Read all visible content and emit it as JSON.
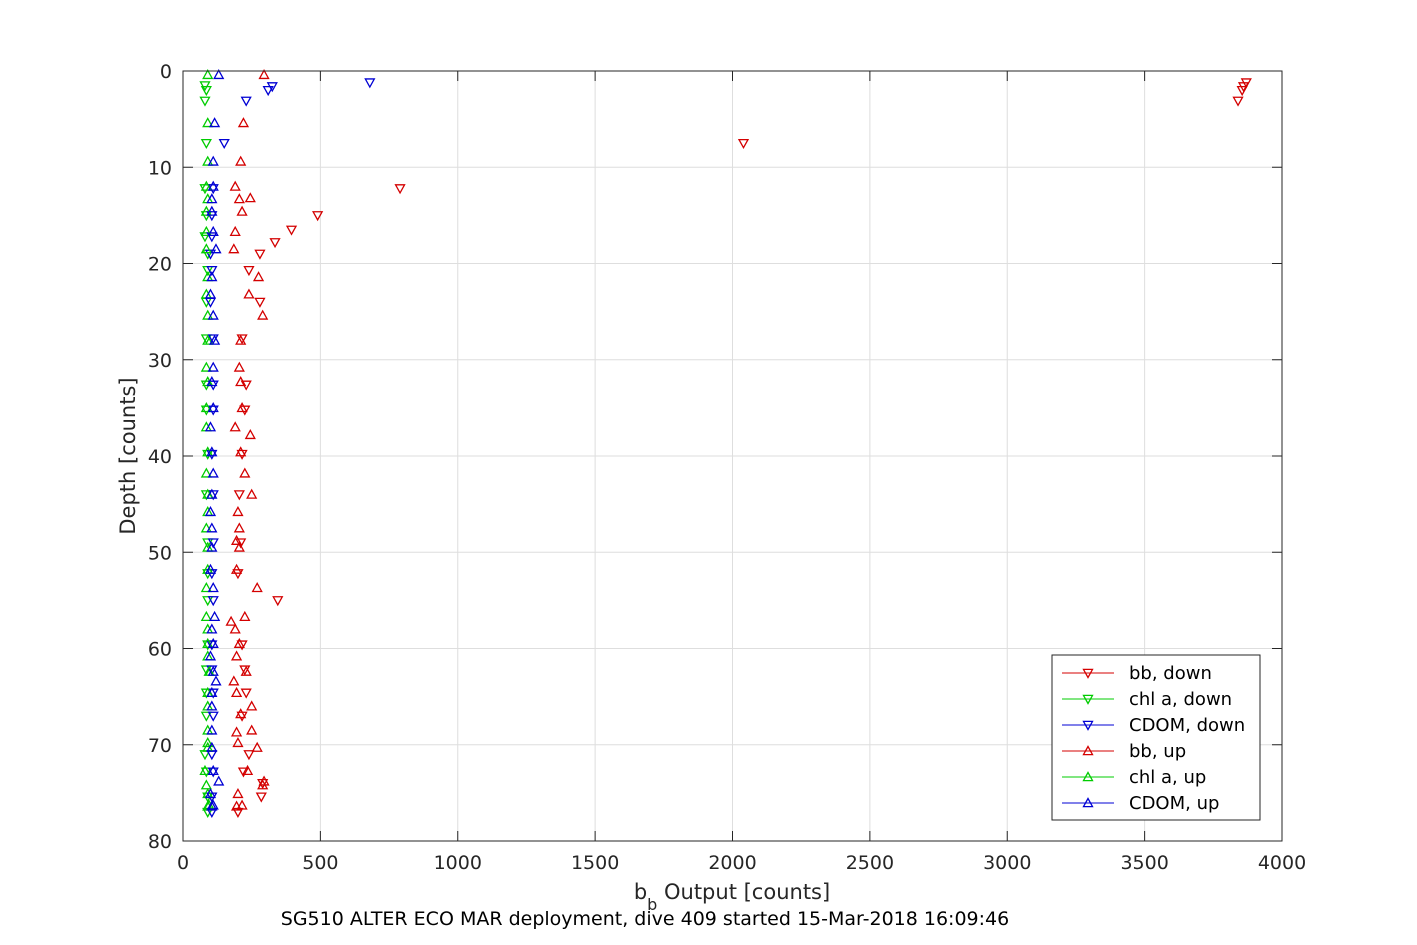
{
  "chart_data": {
    "type": "scatter",
    "title": "",
    "caption": "SG510 ALTER ECO MAR deployment, dive 409 started 15-Mar-2018 16:09:46",
    "xlabel_main": "b",
    "xlabel_sub": "b",
    "xlabel_rest": " Output [counts]",
    "ylabel": "Depth [counts]",
    "xlim": [
      0,
      4000
    ],
    "ylim": [
      0,
      80
    ],
    "y_reversed": true,
    "grid": true,
    "legend_position": "bottom-right",
    "x_ticks": [
      0,
      500,
      1000,
      1500,
      2000,
      2500,
      3000,
      3500,
      4000
    ],
    "y_ticks": [
      0,
      10,
      20,
      30,
      40,
      50,
      60,
      70,
      80
    ],
    "series": [
      {
        "name": "bb, down",
        "color": "#d40000",
        "marker": "triangle-down",
        "points": [
          [
            3870,
            1.2
          ],
          [
            3860,
            1.6
          ],
          [
            3855,
            2.0
          ],
          [
            3840,
            3.1
          ],
          [
            2040,
            7.5
          ],
          [
            790,
            12.2
          ],
          [
            490,
            15.0
          ],
          [
            395,
            16.5
          ],
          [
            335,
            17.8
          ],
          [
            280,
            19.0
          ],
          [
            240,
            20.7
          ],
          [
            280,
            24.0
          ],
          [
            215,
            27.8
          ],
          [
            230,
            32.6
          ],
          [
            225,
            35.2
          ],
          [
            215,
            39.8
          ],
          [
            205,
            44.0
          ],
          [
            210,
            49.0
          ],
          [
            200,
            52.2
          ],
          [
            345,
            55.0
          ],
          [
            215,
            59.6
          ],
          [
            225,
            62.2
          ],
          [
            230,
            64.6
          ],
          [
            215,
            67.0
          ],
          [
            240,
            71.0
          ],
          [
            220,
            72.8
          ],
          [
            290,
            74.0
          ],
          [
            285,
            75.4
          ],
          [
            200,
            77.0
          ]
        ]
      },
      {
        "name": "chl a, down",
        "color": "#00cc00",
        "marker": "triangle-down",
        "points": [
          [
            80,
            1.5
          ],
          [
            85,
            2.0
          ],
          [
            80,
            3.1
          ],
          [
            85,
            7.5
          ],
          [
            80,
            12.2
          ],
          [
            85,
            15.0
          ],
          [
            80,
            17.2
          ],
          [
            90,
            19.0
          ],
          [
            90,
            20.7
          ],
          [
            85,
            24.0
          ],
          [
            85,
            27.8
          ],
          [
            85,
            32.6
          ],
          [
            85,
            35.2
          ],
          [
            90,
            39.8
          ],
          [
            85,
            44.0
          ],
          [
            90,
            49.0
          ],
          [
            90,
            52.2
          ],
          [
            90,
            55.0
          ],
          [
            90,
            59.6
          ],
          [
            85,
            62.2
          ],
          [
            85,
            64.6
          ],
          [
            85,
            67.0
          ],
          [
            80,
            71.0
          ],
          [
            85,
            72.8
          ],
          [
            90,
            75.4
          ],
          [
            90,
            77.0
          ]
        ]
      },
      {
        "name": "CDOM, down",
        "color": "#0000d4",
        "marker": "triangle-down",
        "points": [
          [
            680,
            1.2
          ],
          [
            325,
            1.6
          ],
          [
            310,
            2.0
          ],
          [
            230,
            3.1
          ],
          [
            150,
            7.5
          ],
          [
            110,
            12.2
          ],
          [
            105,
            15.0
          ],
          [
            105,
            17.2
          ],
          [
            100,
            19.0
          ],
          [
            105,
            20.7
          ],
          [
            100,
            24.0
          ],
          [
            110,
            27.8
          ],
          [
            110,
            32.6
          ],
          [
            110,
            35.2
          ],
          [
            105,
            39.8
          ],
          [
            110,
            44.0
          ],
          [
            110,
            49.0
          ],
          [
            105,
            52.2
          ],
          [
            110,
            55.0
          ],
          [
            105,
            59.6
          ],
          [
            105,
            62.2
          ],
          [
            110,
            64.6
          ],
          [
            110,
            67.0
          ],
          [
            105,
            71.0
          ],
          [
            110,
            72.8
          ],
          [
            105,
            75.4
          ],
          [
            105,
            77.0
          ]
        ]
      },
      {
        "name": "bb, up",
        "color": "#d40000",
        "marker": "triangle-up",
        "points": [
          [
            295,
            0.4
          ],
          [
            220,
            5.4
          ],
          [
            210,
            9.4
          ],
          [
            190,
            12.0
          ],
          [
            245,
            13.2
          ],
          [
            205,
            13.3
          ],
          [
            215,
            14.6
          ],
          [
            190,
            16.7
          ],
          [
            185,
            18.5
          ],
          [
            275,
            21.4
          ],
          [
            240,
            23.2
          ],
          [
            290,
            25.4
          ],
          [
            210,
            28.0
          ],
          [
            205,
            30.8
          ],
          [
            210,
            32.3
          ],
          [
            215,
            35.0
          ],
          [
            190,
            37.0
          ],
          [
            245,
            37.8
          ],
          [
            210,
            39.6
          ],
          [
            225,
            41.8
          ],
          [
            250,
            44.0
          ],
          [
            200,
            45.8
          ],
          [
            205,
            47.5
          ],
          [
            195,
            48.8
          ],
          [
            205,
            49.5
          ],
          [
            195,
            51.8
          ],
          [
            270,
            53.7
          ],
          [
            225,
            56.7
          ],
          [
            175,
            57.2
          ],
          [
            190,
            58.0
          ],
          [
            205,
            59.5
          ],
          [
            195,
            60.8
          ],
          [
            230,
            62.4
          ],
          [
            185,
            63.4
          ],
          [
            195,
            64.6
          ],
          [
            250,
            66.0
          ],
          [
            210,
            66.8
          ],
          [
            250,
            68.5
          ],
          [
            195,
            68.7
          ],
          [
            200,
            69.8
          ],
          [
            270,
            70.3
          ],
          [
            235,
            72.7
          ],
          [
            295,
            73.8
          ],
          [
            290,
            74.2
          ],
          [
            200,
            75.1
          ],
          [
            215,
            76.3
          ],
          [
            195,
            76.4
          ]
        ]
      },
      {
        "name": "chl a, up",
        "color": "#00cc00",
        "marker": "triangle-up",
        "points": [
          [
            90,
            0.4
          ],
          [
            90,
            5.4
          ],
          [
            90,
            9.4
          ],
          [
            85,
            12.0
          ],
          [
            90,
            13.3
          ],
          [
            85,
            14.6
          ],
          [
            85,
            16.7
          ],
          [
            85,
            18.5
          ],
          [
            90,
            21.4
          ],
          [
            85,
            23.2
          ],
          [
            90,
            25.4
          ],
          [
            90,
            28.0
          ],
          [
            85,
            30.8
          ],
          [
            90,
            32.3
          ],
          [
            85,
            35.0
          ],
          [
            85,
            37.0
          ],
          [
            90,
            39.6
          ],
          [
            85,
            41.8
          ],
          [
            90,
            44.0
          ],
          [
            90,
            45.8
          ],
          [
            85,
            47.5
          ],
          [
            90,
            49.5
          ],
          [
            90,
            51.8
          ],
          [
            85,
            53.7
          ],
          [
            85,
            56.7
          ],
          [
            90,
            58.0
          ],
          [
            90,
            59.5
          ],
          [
            90,
            60.8
          ],
          [
            95,
            62.4
          ],
          [
            90,
            64.6
          ],
          [
            90,
            66.0
          ],
          [
            90,
            68.5
          ],
          [
            90,
            69.8
          ],
          [
            90,
            70.3
          ],
          [
            80,
            72.7
          ],
          [
            85,
            74.2
          ],
          [
            90,
            75.1
          ],
          [
            95,
            76.3
          ],
          [
            90,
            76.4
          ]
        ]
      },
      {
        "name": "CDOM, up",
        "color": "#0000d4",
        "marker": "triangle-up",
        "points": [
          [
            130,
            0.4
          ],
          [
            115,
            5.4
          ],
          [
            110,
            9.4
          ],
          [
            110,
            12.0
          ],
          [
            105,
            13.3
          ],
          [
            105,
            14.6
          ],
          [
            110,
            16.7
          ],
          [
            120,
            18.5
          ],
          [
            105,
            21.4
          ],
          [
            100,
            23.2
          ],
          [
            110,
            25.4
          ],
          [
            115,
            28.0
          ],
          [
            110,
            30.8
          ],
          [
            105,
            32.3
          ],
          [
            110,
            35.0
          ],
          [
            100,
            37.0
          ],
          [
            105,
            39.6
          ],
          [
            110,
            41.8
          ],
          [
            105,
            44.0
          ],
          [
            100,
            45.8
          ],
          [
            105,
            47.5
          ],
          [
            105,
            49.5
          ],
          [
            100,
            51.8
          ],
          [
            110,
            53.7
          ],
          [
            115,
            56.7
          ],
          [
            105,
            58.0
          ],
          [
            110,
            59.5
          ],
          [
            100,
            60.8
          ],
          [
            110,
            62.4
          ],
          [
            120,
            63.4
          ],
          [
            105,
            64.6
          ],
          [
            105,
            66.0
          ],
          [
            105,
            68.5
          ],
          [
            105,
            70.3
          ],
          [
            110,
            72.7
          ],
          [
            130,
            73.8
          ],
          [
            100,
            75.1
          ],
          [
            110,
            76.3
          ],
          [
            105,
            76.4
          ]
        ]
      }
    ]
  }
}
